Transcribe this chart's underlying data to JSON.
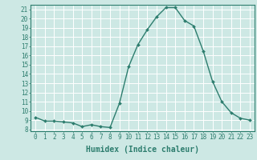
{
  "xlabel": "Humidex (Indice chaleur)",
  "ylabel": "",
  "x_values": [
    0,
    1,
    2,
    3,
    4,
    5,
    6,
    7,
    8,
    9,
    10,
    11,
    12,
    13,
    14,
    15,
    16,
    17,
    18,
    19,
    20,
    21,
    22,
    23
  ],
  "y_values": [
    9.3,
    8.9,
    8.9,
    8.8,
    8.7,
    8.3,
    8.5,
    8.3,
    8.2,
    10.8,
    14.8,
    17.2,
    18.8,
    20.2,
    21.2,
    21.2,
    19.8,
    19.2,
    16.5,
    13.2,
    11.0,
    9.8,
    9.2,
    9.0
  ],
  "line_color": "#2d7d6e",
  "marker": "D",
  "marker_size": 2.0,
  "line_width": 1.0,
  "bg_color": "#cde8e4",
  "grid_color": "#ffffff",
  "tick_color": "#2d7d6e",
  "ylim": [
    7.8,
    21.5
  ],
  "yticks": [
    8,
    9,
    10,
    11,
    12,
    13,
    14,
    15,
    16,
    17,
    18,
    19,
    20,
    21
  ],
  "xlim": [
    -0.5,
    23.5
  ],
  "xticks": [
    0,
    1,
    2,
    3,
    4,
    5,
    6,
    7,
    8,
    9,
    10,
    11,
    12,
    13,
    14,
    15,
    16,
    17,
    18,
    19,
    20,
    21,
    22,
    23
  ],
  "xlabel_fontsize": 7.0,
  "tick_fontsize": 5.5
}
